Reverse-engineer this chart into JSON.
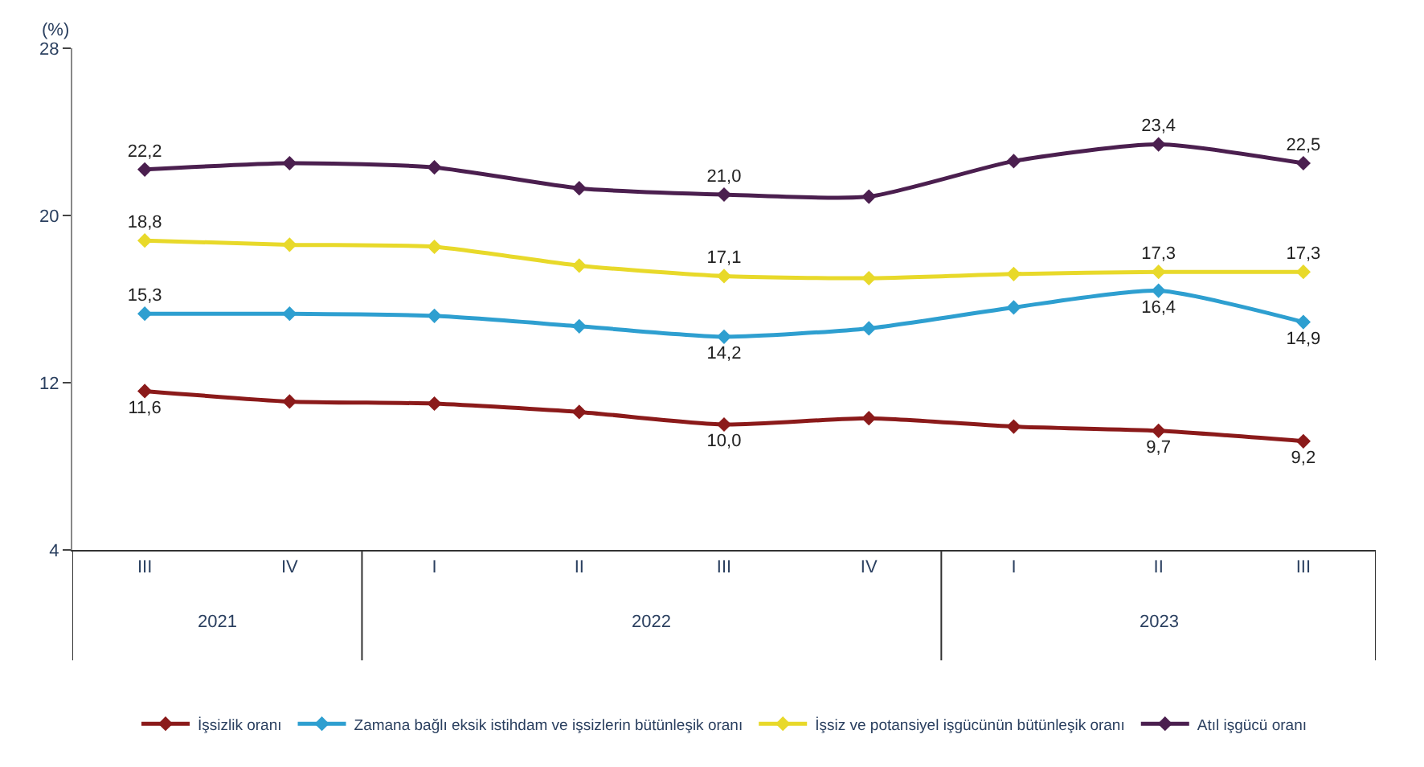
{
  "chart_data": {
    "type": "line",
    "ylabel": "(%)",
    "categories": [
      "III",
      "IV",
      "I",
      "II",
      "III",
      "IV",
      "I",
      "II",
      "III"
    ],
    "annotations": [
      "2021",
      "2022",
      "2023"
    ],
    "ylim": [
      4,
      28
    ],
    "yticks": [
      4,
      12,
      20,
      28
    ],
    "legend": "bottom",
    "marker": "diamond",
    "line_style": "solid",
    "series": [
      {
        "name": "İşsizlik oranı",
        "color": "#8b1a1a",
        "values": [
          11.6,
          11.1,
          11.0,
          10.6,
          10.0,
          10.3,
          9.9,
          9.7,
          9.2
        ],
        "value_labels": [
          "11,6",
          null,
          null,
          null,
          "10,0",
          null,
          null,
          "9,7",
          "9,2"
        ]
      },
      {
        "name": "Zamana bağlı eksik istihdam ve işsizlerin bütünleşik oranı",
        "color": "#2e9fd0",
        "values": [
          15.3,
          15.3,
          15.2,
          14.7,
          14.2,
          14.6,
          15.6,
          16.4,
          14.9
        ],
        "value_labels": [
          "15,3",
          null,
          null,
          null,
          "14,2",
          null,
          null,
          "16,4",
          "14,9"
        ]
      },
      {
        "name": "İşsiz ve potansiyel işgücünün bütünleşik oranı",
        "color": "#e8d92a",
        "values": [
          18.8,
          18.6,
          18.5,
          17.6,
          17.1,
          17.0,
          17.2,
          17.3,
          17.3
        ],
        "value_labels": [
          "18,8",
          null,
          null,
          null,
          "17,1",
          null,
          null,
          "17,3",
          "17,3"
        ]
      },
      {
        "name": "Atıl işgücü oranı",
        "color": "#4b1f4f",
        "values": [
          22.2,
          22.5,
          22.3,
          21.3,
          21.0,
          20.9,
          22.6,
          23.4,
          22.5
        ],
        "value_labels": [
          "22,2",
          null,
          null,
          null,
          "21,0",
          null,
          null,
          "23,4",
          "22,5"
        ]
      }
    ]
  }
}
